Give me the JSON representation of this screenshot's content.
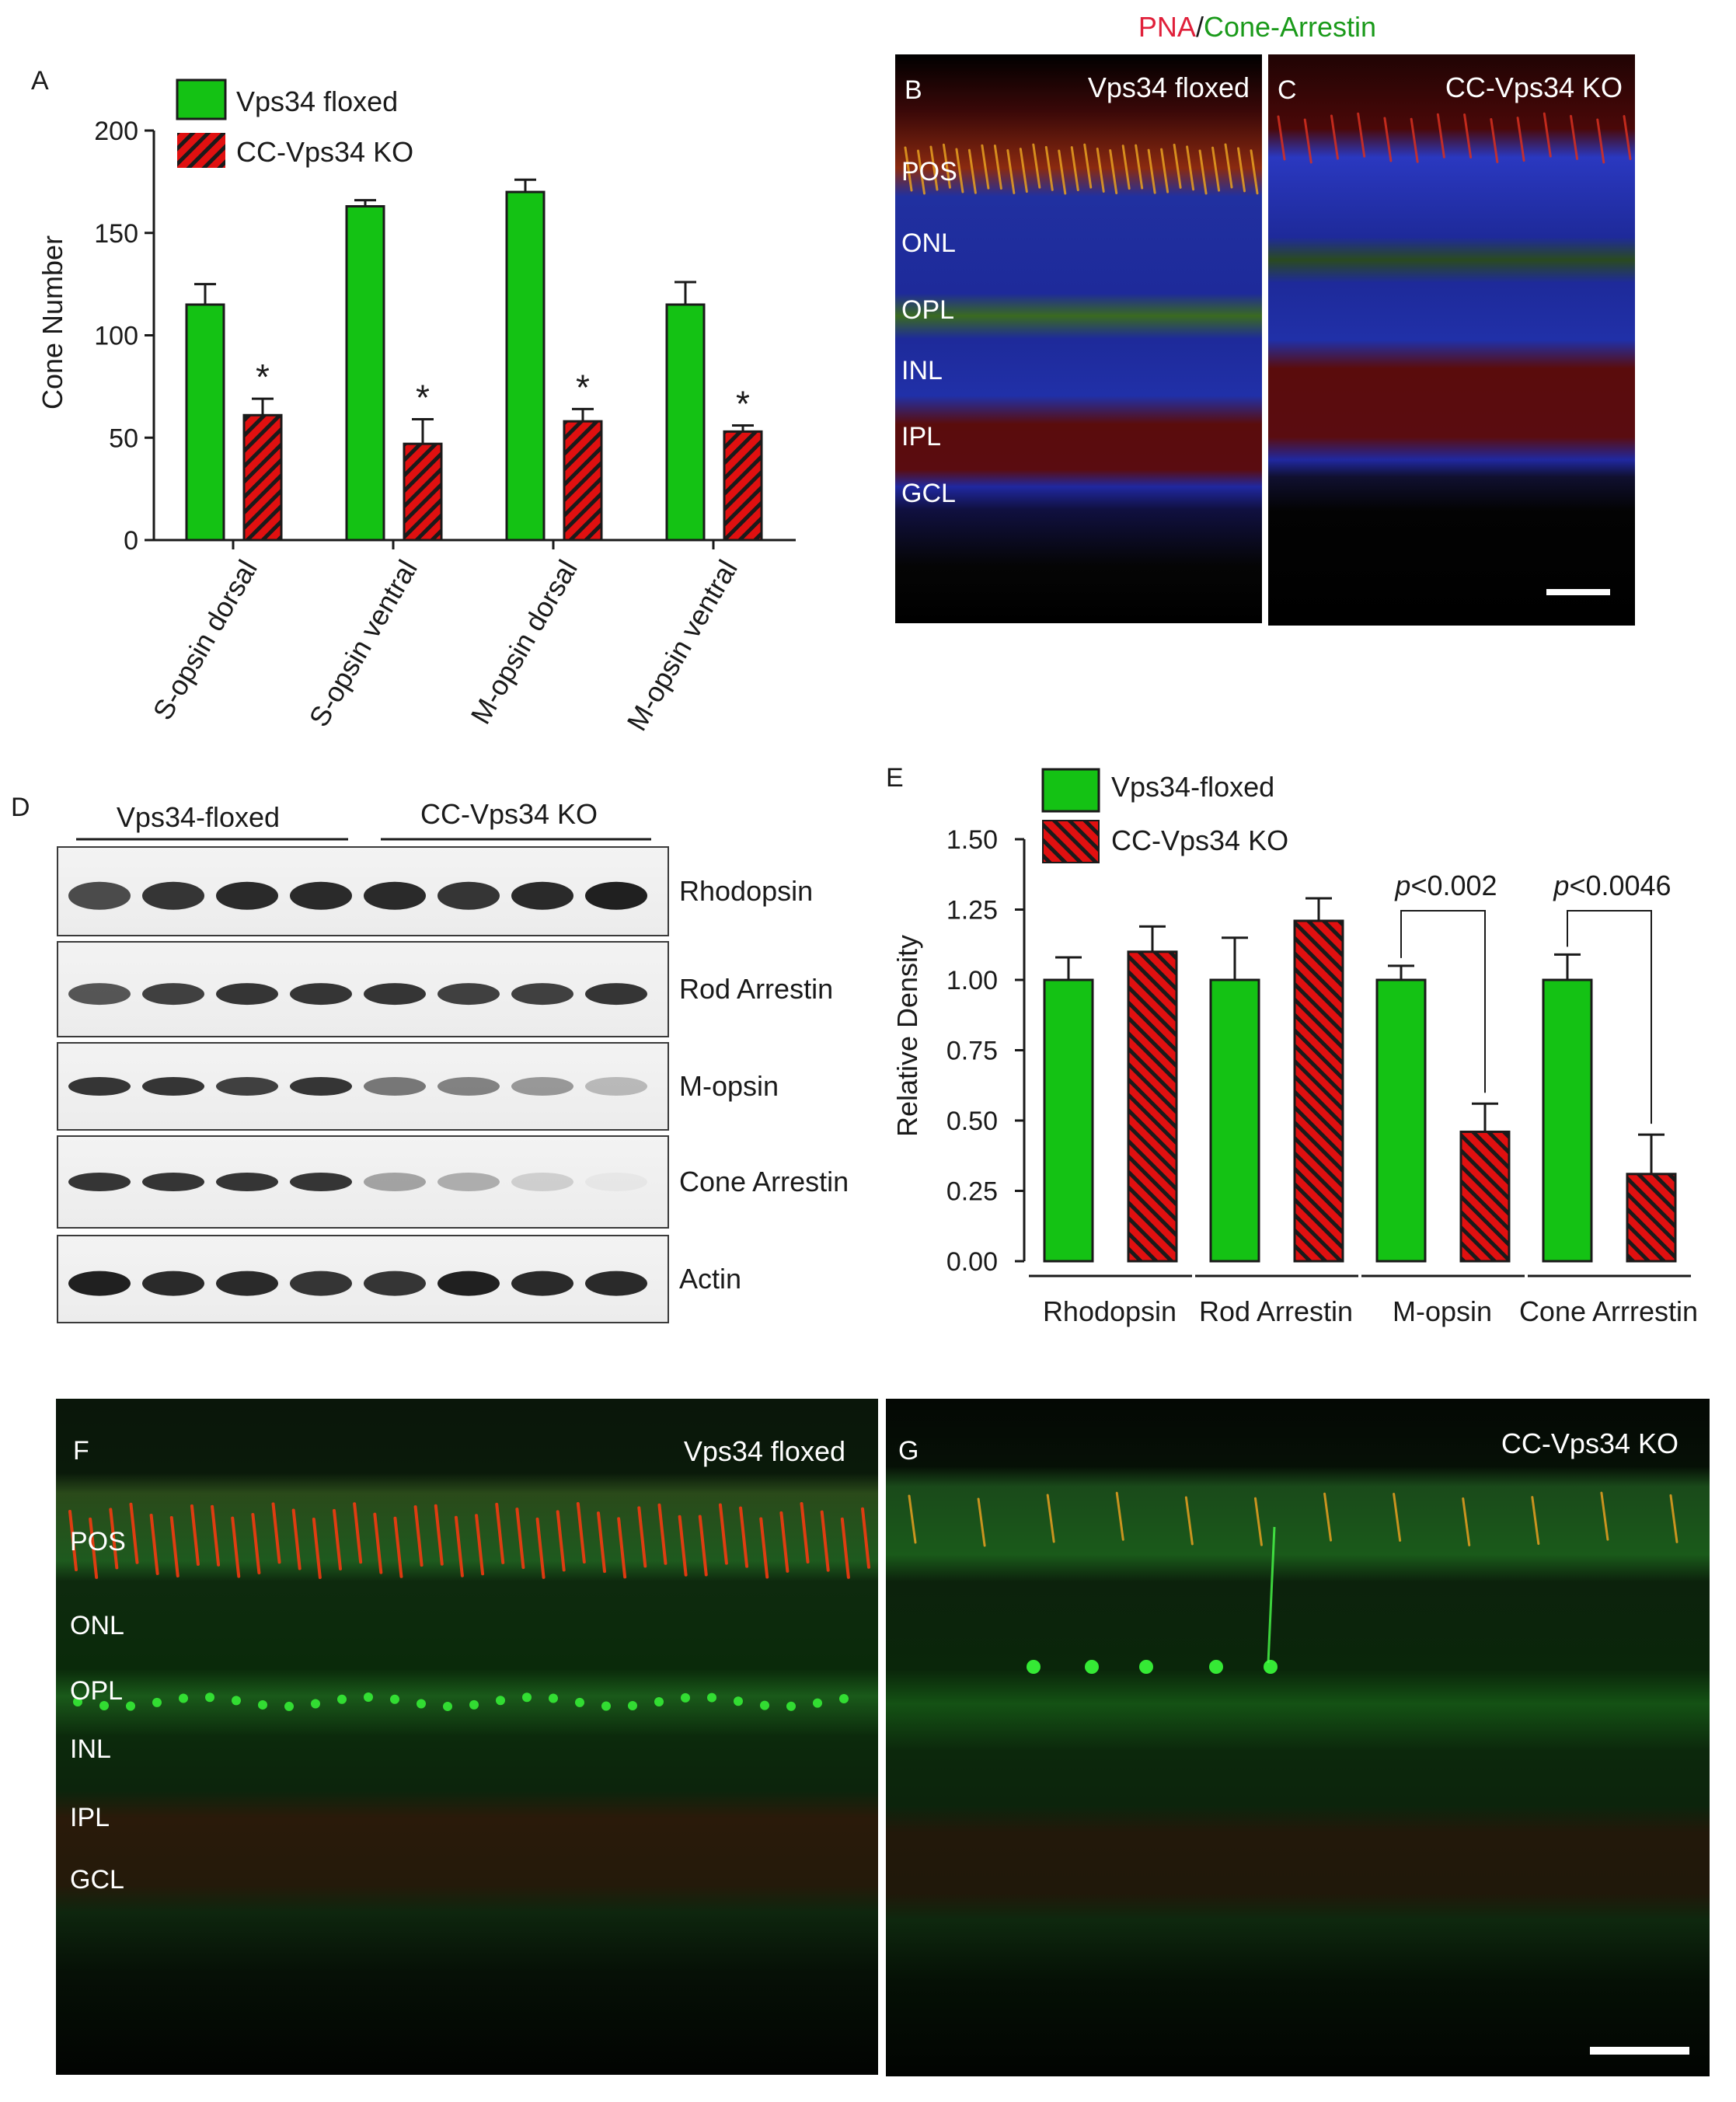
{
  "panel_letters": {
    "a": "A",
    "b": "B",
    "c": "C",
    "d": "D",
    "e": "E",
    "f": "F",
    "g": "G"
  },
  "legend_colors": {
    "green": "#14c214",
    "red": "#e01010",
    "dark": "#1a1a1a"
  },
  "micrograph_header": {
    "pna": "PNA",
    "sep": "/",
    "arrestin": "Cone-Arrestin",
    "pna_color": "#e0203a",
    "arrestin_color": "#1a9a1a"
  },
  "panel_b": {
    "title": "Vps34 floxed",
    "layers": [
      "POS",
      "ONL",
      "OPL",
      "INL",
      "IPL",
      "GCL"
    ]
  },
  "panel_c": {
    "title": "CC-Vps34 KO"
  },
  "panel_f": {
    "title": "Vps34 floxed",
    "layers": [
      "POS",
      "ONL",
      "OPL",
      "INL",
      "IPL",
      "GCL"
    ]
  },
  "panel_g": {
    "title": "CC-Vps34 KO"
  },
  "panel_d": {
    "group_labels": [
      "Vps34-floxed",
      "CC-Vps34 KO"
    ],
    "blots": [
      "Rhodopsin",
      "Rod Arrestin",
      "M-opsin",
      "Cone Arrestin",
      "Actin"
    ]
  },
  "chart_data": [
    {
      "panel": "A",
      "type": "bar",
      "ylabel": "Cone Number",
      "ylim": [
        0,
        200
      ],
      "yticks": [
        0,
        50,
        100,
        150,
        200
      ],
      "categories": [
        "S-opsin dorsal",
        "S-opsin ventral",
        "M-opsin dorsal",
        "M-opsin ventral"
      ],
      "series": [
        {
          "name": "Vps34 floxed",
          "values": [
            115,
            163,
            170,
            115
          ],
          "errors": [
            10,
            3,
            6,
            11
          ]
        },
        {
          "name": "CC-Vps34 KO",
          "values": [
            61,
            47,
            58,
            53
          ],
          "errors": [
            8,
            12,
            6,
            3
          ]
        }
      ],
      "annotations": [
        "*",
        "*",
        "*",
        "*"
      ],
      "legend": "top-left"
    },
    {
      "panel": "E",
      "type": "bar",
      "ylabel": "Relative Density",
      "ylim": [
        0,
        1.5
      ],
      "yticks": [
        "0.00",
        "0.25",
        "0.50",
        "0.75",
        "1.00",
        "1.25",
        "1.50"
      ],
      "categories": [
        "Rhodopsin",
        "Rod Arrestin",
        "M-opsin",
        "Cone Arrrestin"
      ],
      "series": [
        {
          "name": "Vps34-floxed",
          "values": [
            1.0,
            1.0,
            1.0,
            1.0
          ],
          "errors": [
            0.08,
            0.15,
            0.05,
            0.09
          ]
        },
        {
          "name": "CC-Vps34 KO",
          "values": [
            1.1,
            1.21,
            0.46,
            0.31
          ],
          "errors": [
            0.09,
            0.08,
            0.1,
            0.14
          ]
        }
      ],
      "annotations": [
        {
          "prefix": "p",
          "text": "<0.002"
        },
        {
          "prefix": "p",
          "text": "<0.0046"
        }
      ],
      "legend": "top-left"
    }
  ]
}
